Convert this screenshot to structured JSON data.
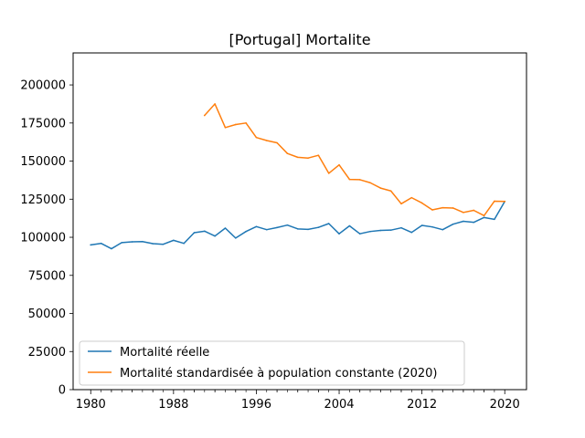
{
  "chart_data": {
    "type": "line",
    "title": "[Portugal] Mortalite",
    "xlabel": "",
    "ylabel": "",
    "xlim": [
      1978.3,
      2022.1
    ],
    "ylim": [
      0,
      221000
    ],
    "x_ticks": [
      1980,
      1988,
      1996,
      2004,
      2012,
      2020
    ],
    "x_tick_labels": [
      "1980",
      "1988",
      "1996",
      "2004",
      "2012",
      "2020"
    ],
    "y_ticks": [
      0,
      25000,
      50000,
      75000,
      100000,
      125000,
      150000,
      175000,
      200000
    ],
    "y_tick_labels": [
      "0",
      "25000",
      "50000",
      "75000",
      "100000",
      "125000",
      "150000",
      "175000",
      "200000"
    ],
    "grid": false,
    "legend_position": "lower-left",
    "series": [
      {
        "name": "Mortalité réelle",
        "color": "#1f77b4",
        "x": [
          1980,
          1981,
          1982,
          1983,
          1984,
          1985,
          1986,
          1987,
          1988,
          1989,
          1990,
          1991,
          1992,
          1993,
          1994,
          1995,
          1996,
          1997,
          1998,
          1999,
          2000,
          2001,
          2002,
          2003,
          2004,
          2005,
          2006,
          2007,
          2008,
          2009,
          2010,
          2011,
          2012,
          2013,
          2014,
          2015,
          2016,
          2017,
          2018,
          2019,
          2020
        ],
        "values": [
          95000,
          96000,
          92500,
          96500,
          97000,
          97200,
          95800,
          95400,
          98000,
          96000,
          103000,
          104000,
          100800,
          106000,
          99500,
          103800,
          107000,
          105000,
          106400,
          108000,
          105500,
          105200,
          106500,
          109000,
          102300,
          107500,
          102300,
          103800,
          104500,
          104700,
          106200,
          103200,
          107800,
          106800,
          105000,
          108600,
          110500,
          109800,
          113000,
          111800,
          123500
        ]
      },
      {
        "name": "Mortalité standardisée à population constante (2020)",
        "color": "#ff7f0e",
        "x": [
          1991,
          1992,
          1993,
          1994,
          1995,
          1996,
          1997,
          1998,
          1999,
          2000,
          2001,
          2002,
          2003,
          2004,
          2005,
          2006,
          2007,
          2008,
          2009,
          2010,
          2011,
          2012,
          2013,
          2014,
          2015,
          2016,
          2017,
          2018,
          2019,
          2020
        ],
        "values": [
          180000,
          187500,
          172000,
          174000,
          175000,
          165500,
          163500,
          162000,
          155000,
          152500,
          152000,
          153800,
          142000,
          147500,
          138000,
          137800,
          135800,
          132300,
          130400,
          122000,
          126000,
          122500,
          118000,
          119400,
          119200,
          116300,
          117700,
          114200,
          123700,
          123500
        ]
      }
    ]
  }
}
